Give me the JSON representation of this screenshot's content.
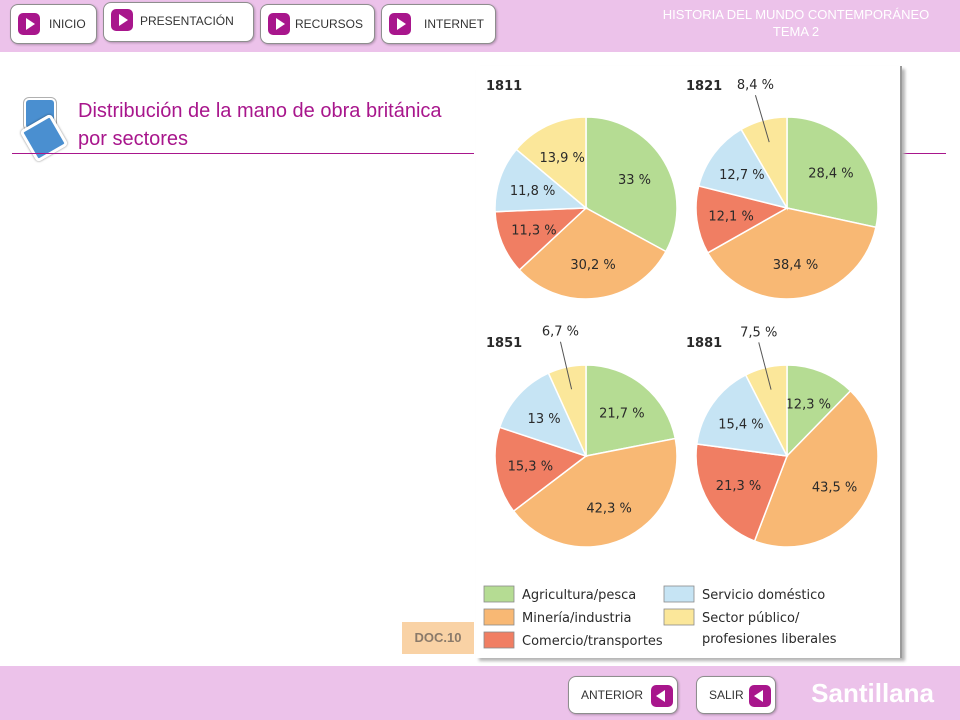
{
  "header": {
    "nav": [
      {
        "label": "INICIO"
      },
      {
        "label": "PRESENTACIÓN"
      },
      {
        "label": "RECURSOS"
      },
      {
        "label": "INTERNET"
      }
    ],
    "title_line1": "HISTORIA DEL MUNDO CONTEMPORÁNEO",
    "title_line2": "TEMA 2"
  },
  "main": {
    "heading": "Distribución de la mano de obra británica por sectores",
    "doc_label": "DOC.10"
  },
  "footer": {
    "prev_label": "ANTERIOR",
    "exit_label": "SALIR",
    "brand": "Santillana"
  },
  "colors": {
    "accent": "#a8168c",
    "bars": "#ecc2ea"
  },
  "icons": {
    "nav": "play-triangle",
    "prev": "back-triangle",
    "doc": "document-squares"
  },
  "chart_data": {
    "type": "pie",
    "legend": [
      {
        "label": "Agricultura/pesca",
        "color": "#b5dc93"
      },
      {
        "label": "Minería/industria",
        "color": "#f8b874"
      },
      {
        "label": "Comercio/transportes",
        "color": "#f07e63"
      },
      {
        "label": "Servicio doméstico",
        "color": "#c6e4f4"
      },
      {
        "label": "Sector público/",
        "label2": "profesiones liberales",
        "color": "#fbe79a"
      }
    ],
    "pies": [
      {
        "title": "1811",
        "values": [
          33,
          30.2,
          11.3,
          11.8,
          13.9
        ],
        "labels": [
          "33 %",
          "30,2 %",
          "11,3 %",
          "11,8 %",
          "13,9 %"
        ]
      },
      {
        "title": "1821",
        "values": [
          28.4,
          38.4,
          12.1,
          12.7,
          8.4
        ],
        "labels": [
          "28,4 %",
          "38,4 %",
          "12,1 %",
          "12,7 %",
          "8,4 %"
        ]
      },
      {
        "title": "1851",
        "values": [
          21.7,
          42.3,
          15.3,
          13,
          6.7
        ],
        "labels": [
          "21,7 %",
          "42,3 %",
          "15,3 %",
          "13 %",
          "6,7 %"
        ]
      },
      {
        "title": "1881",
        "values": [
          12.3,
          43.5,
          21.3,
          15.4,
          7.5
        ],
        "labels": [
          "12,3 %",
          "43,5 %",
          "21,3 %",
          "15,4 %",
          "7,5 %"
        ]
      }
    ]
  }
}
